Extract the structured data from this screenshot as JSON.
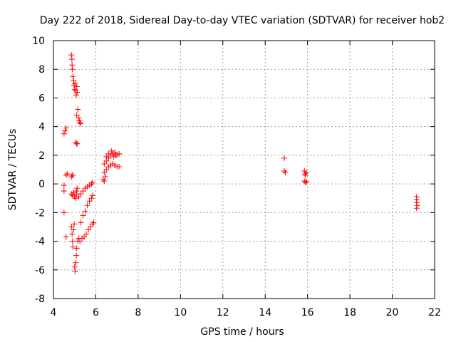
{
  "chart_data": {
    "type": "scatter",
    "title": "Day 222 of 2018, Sidereal Day-to-day VTEC variation (SDTVAR) for receiver hob2",
    "xlabel": "GPS time / hours",
    "ylabel": "SDTVAR / TECUs",
    "xlim": [
      4,
      22
    ],
    "ylim": [
      -8,
      10
    ],
    "xticks": [
      "4",
      "6",
      "8",
      "10",
      "12",
      "14",
      "16",
      "18",
      "20",
      "22"
    ],
    "yticks": [
      "-8",
      "-6",
      "-4",
      "-2",
      "0",
      "2",
      "4",
      "6",
      "8",
      "10"
    ],
    "grid": true,
    "marker": "plus",
    "color": "#ff0000",
    "series": [
      {
        "name": "hob2",
        "points": [
          [
            4.5,
            3.5
          ],
          [
            4.55,
            3.7
          ],
          [
            4.6,
            3.9
          ],
          [
            4.5,
            -0.1
          ],
          [
            4.5,
            -0.5
          ],
          [
            4.5,
            -2.0
          ],
          [
            4.6,
            -3.7
          ],
          [
            4.6,
            0.6
          ],
          [
            4.65,
            0.7
          ],
          [
            4.85,
            9.0
          ],
          [
            4.87,
            8.7
          ],
          [
            4.88,
            8.3
          ],
          [
            4.9,
            8.0
          ],
          [
            4.92,
            7.5
          ],
          [
            4.95,
            7.2
          ],
          [
            4.97,
            6.9
          ],
          [
            5.0,
            6.6
          ],
          [
            5.02,
            7.0
          ],
          [
            5.05,
            6.5
          ],
          [
            5.08,
            6.2
          ],
          [
            5.1,
            6.8
          ],
          [
            5.12,
            6.4
          ],
          [
            5.1,
            4.8
          ],
          [
            5.15,
            5.2
          ],
          [
            5.2,
            4.6
          ],
          [
            5.22,
            4.4
          ],
          [
            5.25,
            4.3
          ],
          [
            5.28,
            4.2
          ],
          [
            5.05,
            2.9
          ],
          [
            5.1,
            2.8
          ],
          [
            5.12,
            2.8
          ],
          [
            4.85,
            0.5
          ],
          [
            4.88,
            0.6
          ],
          [
            4.92,
            0.6
          ],
          [
            4.85,
            -0.7
          ],
          [
            4.9,
            -0.8
          ],
          [
            4.95,
            -0.6
          ],
          [
            5.0,
            -0.9
          ],
          [
            5.05,
            -1.0
          ],
          [
            5.08,
            -0.5
          ],
          [
            5.1,
            -0.7
          ],
          [
            5.12,
            -0.3
          ],
          [
            4.85,
            -3.0
          ],
          [
            4.88,
            -3.5
          ],
          [
            4.9,
            -4.0
          ],
          [
            4.92,
            -4.4
          ],
          [
            4.95,
            -3.2
          ],
          [
            4.98,
            -2.8
          ],
          [
            5.0,
            -5.8
          ],
          [
            5.02,
            -6.1
          ],
          [
            5.05,
            -5.5
          ],
          [
            5.08,
            -5.0
          ],
          [
            5.1,
            -4.5
          ],
          [
            5.15,
            -4.0
          ],
          [
            5.2,
            -3.8
          ],
          [
            5.2,
            -0.9
          ],
          [
            5.3,
            -0.7
          ],
          [
            5.4,
            -0.5
          ],
          [
            5.5,
            -0.3
          ],
          [
            5.6,
            -0.2
          ],
          [
            5.7,
            -0.1
          ],
          [
            5.8,
            0.0
          ],
          [
            5.85,
            0.1
          ],
          [
            5.25,
            -4.0
          ],
          [
            5.35,
            -3.8
          ],
          [
            5.45,
            -3.7
          ],
          [
            5.55,
            -3.5
          ],
          [
            5.65,
            -3.2
          ],
          [
            5.75,
            -3.0
          ],
          [
            5.85,
            -2.8
          ],
          [
            5.9,
            -2.7
          ],
          [
            5.3,
            -2.7
          ],
          [
            5.4,
            -2.2
          ],
          [
            5.5,
            -1.9
          ],
          [
            5.6,
            -1.5
          ],
          [
            5.7,
            -1.2
          ],
          [
            5.8,
            -1.0
          ],
          [
            5.85,
            -0.8
          ],
          [
            6.35,
            0.3
          ],
          [
            6.4,
            0.2
          ],
          [
            6.45,
            0.5
          ],
          [
            6.4,
            0.8
          ],
          [
            6.5,
            1.0
          ],
          [
            6.6,
            1.2
          ],
          [
            6.7,
            1.3
          ],
          [
            6.8,
            1.4
          ],
          [
            6.9,
            1.3
          ],
          [
            7.0,
            1.2
          ],
          [
            7.1,
            1.2
          ],
          [
            6.4,
            1.4
          ],
          [
            6.5,
            1.6
          ],
          [
            6.6,
            1.8
          ],
          [
            6.7,
            2.0
          ],
          [
            6.8,
            2.1
          ],
          [
            6.9,
            2.2
          ],
          [
            7.0,
            2.0
          ],
          [
            7.1,
            2.1
          ],
          [
            6.5,
            1.9
          ],
          [
            6.6,
            2.1
          ],
          [
            6.75,
            2.3
          ],
          [
            6.85,
            1.9
          ],
          [
            6.95,
            2.0
          ],
          [
            14.9,
            1.8
          ],
          [
            14.9,
            0.9
          ],
          [
            14.95,
            0.8
          ],
          [
            15.85,
            0.9
          ],
          [
            15.88,
            0.7
          ],
          [
            15.9,
            0.6
          ],
          [
            15.95,
            0.8
          ],
          [
            15.85,
            0.2
          ],
          [
            15.9,
            0.1
          ],
          [
            15.95,
            0.15
          ],
          [
            21.15,
            -0.9
          ],
          [
            21.15,
            -1.1
          ],
          [
            21.15,
            -1.3
          ],
          [
            21.17,
            -1.5
          ],
          [
            21.15,
            -1.7
          ]
        ]
      }
    ]
  }
}
